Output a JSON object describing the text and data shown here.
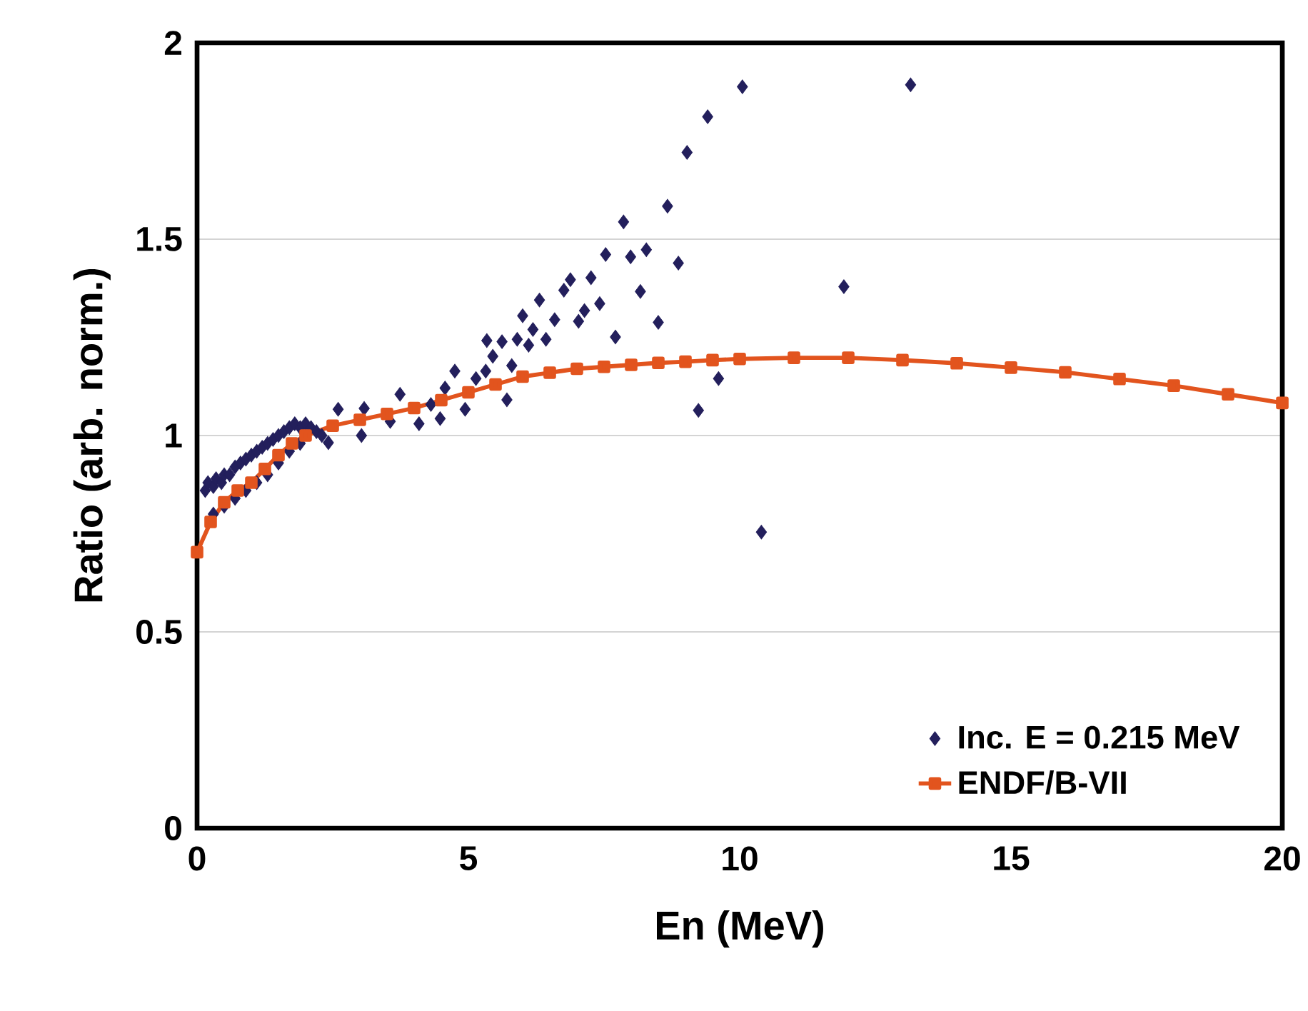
{
  "chart_data": {
    "type": "scatter",
    "xlabel": "En (MeV)",
    "ylabel": "Ratio (arb. norm.)",
    "xlim": [
      0,
      20
    ],
    "ylim": [
      0,
      2
    ],
    "xticks": [
      0,
      5,
      10,
      15,
      20
    ],
    "yticks": [
      0,
      0.5,
      1,
      1.5,
      2
    ],
    "grid": "y",
    "legend": "bottom right",
    "series": [
      {
        "name": "Inc. E = 0.215 MeV",
        "marker": "diamond",
        "color": "#231f5c",
        "x": [
          0.15,
          0.2,
          0.3,
          0.35,
          0.45,
          0.5,
          0.6,
          0.7,
          0.8,
          0.9,
          1.0,
          1.1,
          1.2,
          1.3,
          1.4,
          1.5,
          1.6,
          1.7,
          1.8,
          1.9,
          2.0,
          2.1,
          2.2,
          2.3,
          0.3,
          0.5,
          0.7,
          0.9,
          1.1,
          1.3,
          1.5,
          1.7,
          1.9,
          2.42,
          2.6,
          3.03,
          3.08,
          3.56,
          3.74,
          4.09,
          4.31,
          4.48,
          4.57,
          4.75,
          4.94,
          5.14,
          5.32,
          5.34,
          5.45,
          5.62,
          5.71,
          5.8,
          5.9,
          6.0,
          6.11,
          6.19,
          6.31,
          6.43,
          6.59,
          6.76,
          6.88,
          7.03,
          7.14,
          7.26,
          7.42,
          7.53,
          7.71,
          7.86,
          7.99,
          8.17,
          8.28,
          8.5,
          8.67,
          8.87,
          9.03,
          9.24,
          9.41,
          9.61,
          10.05,
          10.4,
          11.92,
          13.15
        ],
        "values": [
          0.86,
          0.88,
          0.87,
          0.89,
          0.88,
          0.9,
          0.9,
          0.92,
          0.93,
          0.94,
          0.95,
          0.96,
          0.97,
          0.98,
          0.99,
          1.0,
          1.01,
          1.02,
          1.03,
          1.02,
          1.03,
          1.02,
          1.01,
          1.0,
          0.8,
          0.82,
          0.84,
          0.86,
          0.88,
          0.9,
          0.93,
          0.96,
          0.98,
          0.982,
          1.067,
          1.0,
          1.069,
          1.036,
          1.105,
          1.03,
          1.079,
          1.043,
          1.121,
          1.164,
          1.067,
          1.145,
          1.164,
          1.242,
          1.202,
          1.239,
          1.091,
          1.178,
          1.245,
          1.305,
          1.23,
          1.27,
          1.345,
          1.245,
          1.295,
          1.37,
          1.397,
          1.291,
          1.318,
          1.402,
          1.336,
          1.461,
          1.251,
          1.544,
          1.455,
          1.367,
          1.473,
          1.288,
          1.584,
          1.439,
          1.721,
          1.064,
          1.812,
          1.145,
          1.888,
          0.754,
          1.379,
          1.893
        ]
      },
      {
        "name": "ENDF/B-VII",
        "type": "line",
        "marker": "square",
        "line_style": "solid",
        "color": "#e2541e",
        "x": [
          0,
          0.25,
          0.5,
          0.75,
          1,
          1.25,
          1.5,
          1.75,
          2,
          2.5,
          3,
          3.5,
          4,
          4.5,
          5,
          5.5,
          6,
          6.5,
          7,
          7.5,
          8,
          8.5,
          9,
          9.5,
          10,
          11,
          12,
          13,
          14,
          15,
          16,
          17,
          18,
          19,
          20
        ],
        "values": [
          0.703,
          0.78,
          0.83,
          0.86,
          0.88,
          0.915,
          0.95,
          0.98,
          1.0,
          1.025,
          1.04,
          1.055,
          1.07,
          1.09,
          1.11,
          1.13,
          1.15,
          1.16,
          1.17,
          1.175,
          1.18,
          1.185,
          1.188,
          1.192,
          1.195,
          1.198,
          1.198,
          1.192,
          1.184,
          1.173,
          1.161,
          1.144,
          1.127,
          1.105,
          1.083
        ]
      }
    ]
  }
}
